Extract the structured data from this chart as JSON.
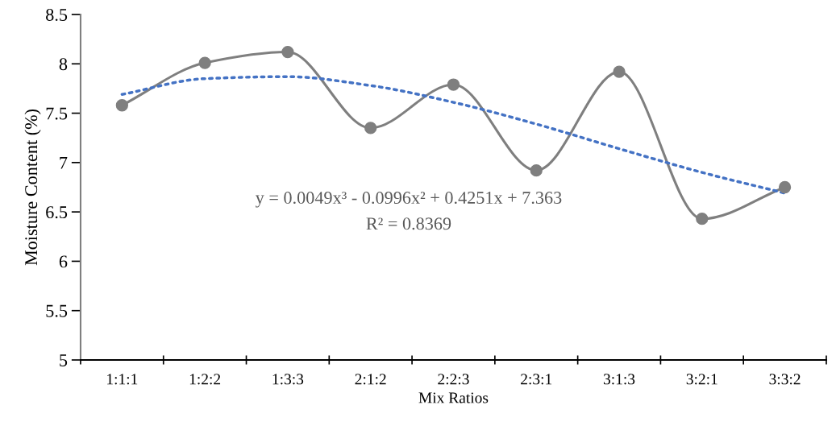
{
  "chart_data": {
    "type": "line",
    "xlabel": "Mix Ratios",
    "ylabel": "Moisture Content (%)",
    "categories": [
      "1:1:1",
      "1:2:2",
      "1:3:3",
      "2:1:2",
      "2:2:3",
      "2:3:1",
      "3:1:3",
      "3:2:1",
      "3:3:2"
    ],
    "series": [
      {
        "color": "#7f7f7f",
        "marker": "circle",
        "line_style": "solid",
        "values": [
          7.58,
          8.01,
          8.12,
          7.35,
          7.79,
          6.92,
          7.92,
          6.43,
          6.75
        ]
      },
      {
        "color": "#4472c4",
        "marker": "none",
        "line_style": "dotted",
        "values": [
          7.69,
          7.85,
          7.87,
          7.78,
          7.61,
          7.39,
          7.14,
          6.9,
          6.69
        ]
      }
    ],
    "ylim": [
      5,
      8.5
    ],
    "yticks": [
      5,
      5.5,
      6,
      6.5,
      7,
      7.5,
      8,
      8.5
    ],
    "grid": false,
    "legend": false,
    "annotations": [
      "y = 0.0049x³ - 0.0996x² + 0.4251x + 7.363",
      "R² = 0.8369"
    ]
  }
}
